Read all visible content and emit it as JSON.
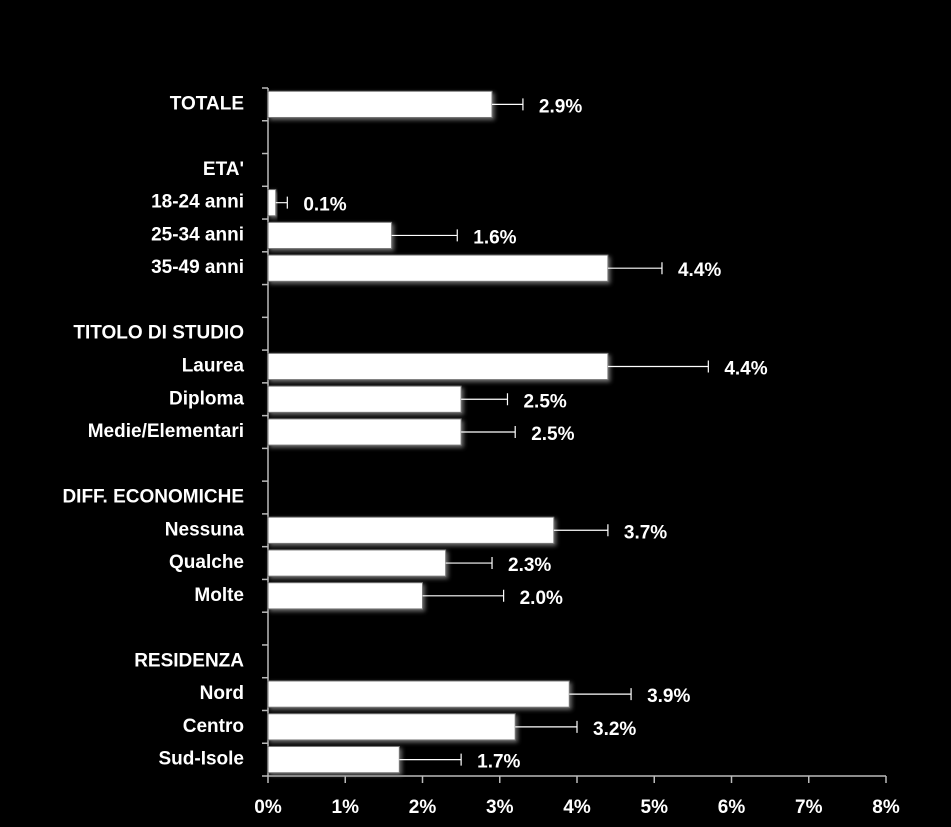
{
  "chart_data": {
    "type": "bar",
    "orientation": "horizontal",
    "categories": [
      "TOTALE",
      null,
      "ETA'",
      "18-24 anni",
      "25-34 anni",
      "35-49 anni",
      null,
      "TITOLO DI STUDIO",
      "Laurea",
      "Diploma",
      "Medie/Elementari",
      null,
      "DIFF. ECONOMICHE",
      "Nessuna",
      "Qualche",
      "Molte",
      null,
      "RESIDENZA",
      "Nord",
      "Centro",
      "Sud-Isole"
    ],
    "values": [
      2.9,
      null,
      null,
      0.1,
      1.6,
      4.4,
      null,
      null,
      4.4,
      2.5,
      2.5,
      null,
      null,
      3.7,
      2.3,
      2.0,
      null,
      null,
      3.9,
      3.2,
      1.7
    ],
    "value_labels": [
      "2.9%",
      null,
      null,
      "0.1%",
      "1.6%",
      "4.4%",
      null,
      null,
      "4.4%",
      "2.5%",
      "2.5%",
      null,
      null,
      "3.7%",
      "2.3%",
      "2.0%",
      null,
      null,
      "3.9%",
      "3.2%",
      "1.7%"
    ],
    "errors": [
      0.4,
      null,
      null,
      0.15,
      0.85,
      0.7,
      null,
      null,
      1.3,
      0.6,
      0.7,
      null,
      null,
      0.7,
      0.6,
      1.05,
      null,
      null,
      0.8,
      0.8,
      0.8
    ],
    "color": "#ffffff",
    "xlim": [
      0,
      8
    ],
    "xticks": [
      {
        "value": 0,
        "label": "0%"
      },
      {
        "value": 1,
        "label": "1%"
      },
      {
        "value": 2,
        "label": "2%"
      },
      {
        "value": 3,
        "label": "3%"
      },
      {
        "value": 4,
        "label": "4%"
      },
      {
        "value": 5,
        "label": "5%"
      },
      {
        "value": 6,
        "label": "6%"
      },
      {
        "value": 7,
        "label": "7%"
      },
      {
        "value": 8,
        "label": "8%"
      }
    ],
    "grid": false
  }
}
